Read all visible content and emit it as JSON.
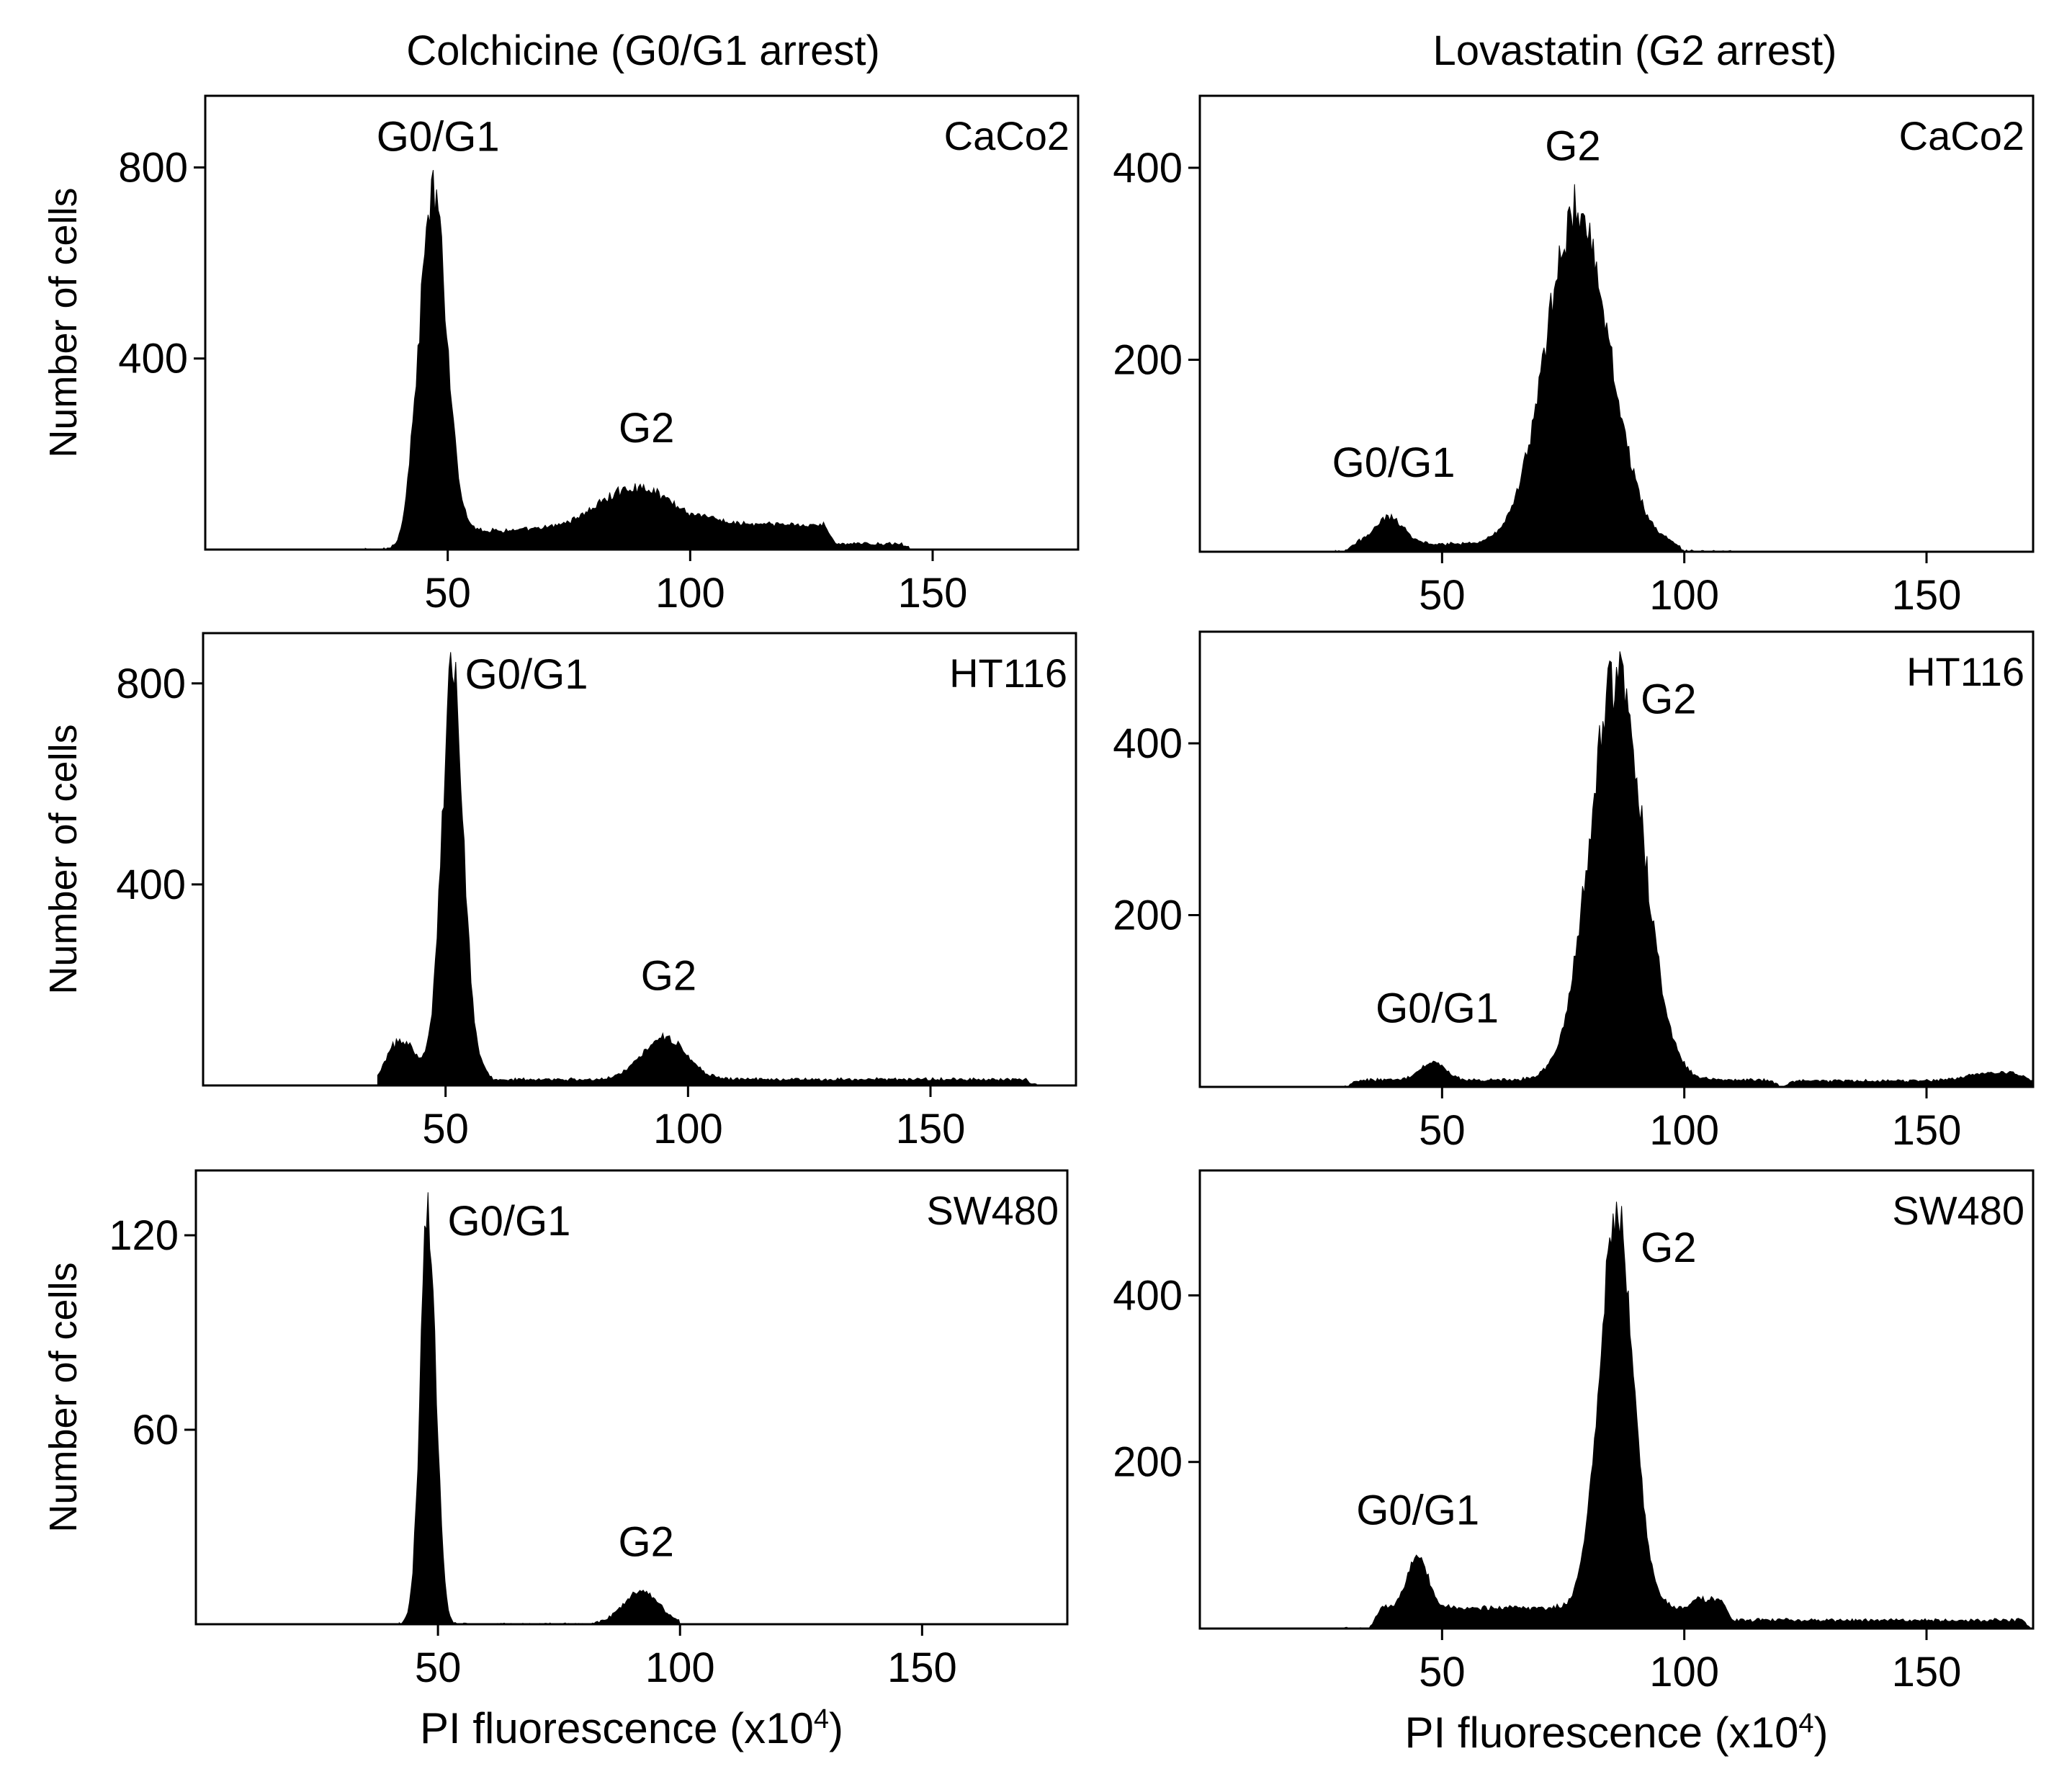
{
  "columns": [
    {
      "title": "Colchicine (G0/G1 arrest)"
    },
    {
      "title": "Lovastatin (G2 arrest)"
    }
  ],
  "x_axis_title": "PI fluorescence (x10",
  "x_axis_superscript": "4",
  "x_axis_title_close": ")",
  "y_axis_title": "Number of cells",
  "colors": {
    "fill": "#000000",
    "frame": "#000000",
    "background": "#ffffff"
  },
  "chart_data": [
    {
      "type": "area",
      "column": "Colchicine (G0/G1 arrest)",
      "cell_line": "CaCo2",
      "xlim": [
        0,
        180
      ],
      "ylim": [
        0,
        950
      ],
      "x_ticks": [
        50,
        100,
        150
      ],
      "y_ticks": [
        400,
        800
      ],
      "xlabel": "",
      "ylabel": "Number of cells",
      "x_start": 33,
      "x_end": 146,
      "components": [
        {
          "type": "peak",
          "mu": 47,
          "sigma": 2.8,
          "amp": 700
        },
        {
          "type": "peak",
          "mu": 89,
          "sigma": 8,
          "amp": 90
        },
        {
          "type": "floor",
          "from": 40,
          "to": 130,
          "level": 40
        },
        {
          "type": "floor",
          "from": 100,
          "to": 146,
          "level": 12
        }
      ],
      "annotations": [
        {
          "text": "G0/G1",
          "x": 48,
          "y": 835,
          "anchor": "middle"
        },
        {
          "text": "G2",
          "x": 91,
          "y": 225,
          "anchor": "middle"
        }
      ]
    },
    {
      "type": "area",
      "column": "Lovastatin (G2 arrest)",
      "cell_line": "CaCo2",
      "xlim": [
        0,
        172
      ],
      "ylim": [
        0,
        475
      ],
      "x_ticks": [
        50,
        100,
        150
      ],
      "y_ticks": [
        200,
        400
      ],
      "xlabel": "",
      "ylabel": "Number of cells",
      "x_start": 28,
      "x_end": 110,
      "components": [
        {
          "type": "peak",
          "mu": 78,
          "sigma": 6.5,
          "amp": 350
        },
        {
          "type": "peak",
          "mu": 39,
          "sigma": 3,
          "amp": 28
        },
        {
          "type": "floor",
          "from": 30,
          "to": 100,
          "level": 8
        }
      ],
      "annotations": [
        {
          "text": "G2",
          "x": 77,
          "y": 408,
          "anchor": "middle"
        },
        {
          "text": "G0/G1",
          "x": 40,
          "y": 78,
          "anchor": "middle"
        }
      ]
    },
    {
      "type": "area",
      "column": "Colchicine (G0/G1 arrest)",
      "cell_line": "HT116",
      "xlim": [
        0,
        180
      ],
      "ylim": [
        0,
        900
      ],
      "x_ticks": [
        50,
        100,
        150
      ],
      "y_ticks": [
        400,
        800
      ],
      "xlabel": "",
      "ylabel": "Number of cells",
      "x_start": 36,
      "x_end": 172,
      "components": [
        {
          "type": "peak",
          "mu": 51.5,
          "sigma": 2.2,
          "amp": 820
        },
        {
          "type": "peak",
          "mu": 95,
          "sigma": 4.5,
          "amp": 85
        },
        {
          "type": "peak",
          "mu": 41,
          "sigma": 3,
          "amp": 70
        },
        {
          "type": "floor",
          "from": 36,
          "to": 60,
          "level": 20
        },
        {
          "type": "floor",
          "from": 55,
          "to": 172,
          "level": 12
        }
      ],
      "annotations": [
        {
          "text": "G0/G1",
          "x": 54,
          "y": 790,
          "anchor": "start"
        },
        {
          "text": "G2",
          "x": 96,
          "y": 190,
          "anchor": "middle"
        }
      ]
    },
    {
      "type": "area",
      "column": "Lovastatin (G2 arrest)",
      "cell_line": "HT116",
      "xlim": [
        0,
        172
      ],
      "ylim": [
        0,
        530
      ],
      "x_ticks": [
        50,
        100,
        150
      ],
      "y_ticks": [
        200,
        400
      ],
      "xlabel": "",
      "ylabel": "Number of cells",
      "x_start": 30,
      "x_end": 172,
      "components": [
        {
          "type": "peak",
          "mu": 86,
          "sigma": 5.5,
          "amp": 470
        },
        {
          "type": "peak",
          "mu": 48,
          "sigma": 2.5,
          "amp": 22
        },
        {
          "type": "floor",
          "from": 30,
          "to": 120,
          "level": 8
        },
        {
          "type": "floor",
          "from": 120,
          "to": 172,
          "level": 7
        },
        {
          "type": "peak",
          "mu": 165,
          "sigma": 6,
          "amp": 10
        }
      ],
      "annotations": [
        {
          "text": "G2",
          "x": 91,
          "y": 435,
          "anchor": "start"
        },
        {
          "text": "G0/G1",
          "x": 49,
          "y": 75,
          "anchor": "middle"
        }
      ]
    },
    {
      "type": "area",
      "column": "Colchicine (G0/G1 arrest)",
      "cell_line": "SW480",
      "xlim": [
        0,
        180
      ],
      "ylim": [
        0,
        140
      ],
      "x_ticks": [
        50,
        100,
        150
      ],
      "y_ticks": [
        60,
        120
      ],
      "xlabel": "PI fluorescence (x10^4)",
      "ylabel": "Number of cells",
      "x_start": 42,
      "x_end": 100,
      "components": [
        {
          "type": "peak",
          "mu": 48,
          "sigma": 1.6,
          "amp": 128
        },
        {
          "type": "peak",
          "mu": 92,
          "sigma": 3.8,
          "amp": 10
        }
      ],
      "annotations": [
        {
          "text": "G0/G1",
          "x": 52,
          "y": 120,
          "anchor": "start"
        },
        {
          "text": "G2",
          "x": 93,
          "y": 21,
          "anchor": "middle"
        }
      ]
    },
    {
      "type": "area",
      "column": "Lovastatin (G2 arrest)",
      "cell_line": "SW480",
      "xlim": [
        0,
        172
      ],
      "ylim": [
        0,
        550
      ],
      "x_ticks": [
        50,
        100,
        150
      ],
      "y_ticks": [
        200,
        400
      ],
      "xlabel": "PI fluorescence (x10^4)",
      "ylabel": "Number of cells",
      "x_start": 30,
      "x_end": 172,
      "components": [
        {
          "type": "peak",
          "mu": 86,
          "sigma": 3.5,
          "amp": 470
        },
        {
          "type": "peak",
          "mu": 45,
          "sigma": 2.2,
          "amp": 60
        },
        {
          "type": "floor",
          "from": 35,
          "to": 110,
          "level": 25
        },
        {
          "type": "floor",
          "from": 100,
          "to": 172,
          "level": 10
        }
      ],
      "annotations": [
        {
          "text": "G2",
          "x": 91,
          "y": 440,
          "anchor": "start"
        },
        {
          "text": "G0/G1",
          "x": 45,
          "y": 125,
          "anchor": "middle"
        }
      ]
    }
  ]
}
